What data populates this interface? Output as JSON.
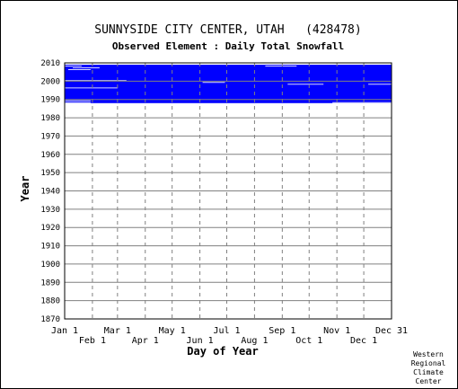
{
  "chart_data": {
    "type": "heatmap",
    "title": "SUNNYSIDE CITY CENTER, UTAH   (428478)",
    "subtitle": "Observed Element : Daily Total Snowfall",
    "xlabel": "Day of Year",
    "ylabel": "Year",
    "x_ticks_upper": [
      "Jan 1",
      "Mar 1",
      "May 1",
      "Jul 1",
      "Sep 1",
      "Nov 1",
      "Dec 31"
    ],
    "x_ticks_lower": [
      "Feb 1",
      "Apr 1",
      "Jun 1",
      "Aug 1",
      "Oct 1",
      "Dec 1"
    ],
    "y_ticks": [
      "2010",
      "2000",
      "1990",
      "1980",
      "1970",
      "1960",
      "1950",
      "1940",
      "1930",
      "1920",
      "1910",
      "1900",
      "1890",
      "1880",
      "1870"
    ],
    "ylim": [
      1870,
      2010
    ],
    "xlim_day": [
      1,
      366
    ],
    "grid": true,
    "series": [
      {
        "name": "",
        "color": "#0000ff",
        "data_range_years": [
          1988,
          2008
        ],
        "missing_segments_approx": [
          {
            "year": 2008,
            "days": [
              1,
              20
            ]
          },
          {
            "year": 2008,
            "days": [
              225,
              260
            ]
          },
          {
            "year": 2007,
            "days": [
              10,
              40
            ]
          },
          {
            "year": 2006,
            "days": [
              5,
              30
            ]
          },
          {
            "year": 2000,
            "days": [
              1,
              70
            ]
          },
          {
            "year": 1999,
            "days": [
              155,
              180
            ]
          },
          {
            "year": 1998,
            "days": [
              250,
              290
            ]
          },
          {
            "year": 1998,
            "days": [
              340,
              366
            ]
          },
          {
            "year": 1996,
            "days": [
              1,
              60
            ]
          },
          {
            "year": 1989,
            "days": [
              1,
              30
            ]
          },
          {
            "year": 1988,
            "days": [
              1,
              30
            ]
          },
          {
            "year": 1988,
            "days": [
              300,
              366
            ]
          }
        ]
      }
    ]
  },
  "credit": {
    "line1": "Western",
    "line2": "Regional",
    "line3": "Climate",
    "line4": "Center"
  },
  "colors": {
    "data": "#0000ff",
    "grid": "#808080",
    "background": "#ffffff"
  }
}
